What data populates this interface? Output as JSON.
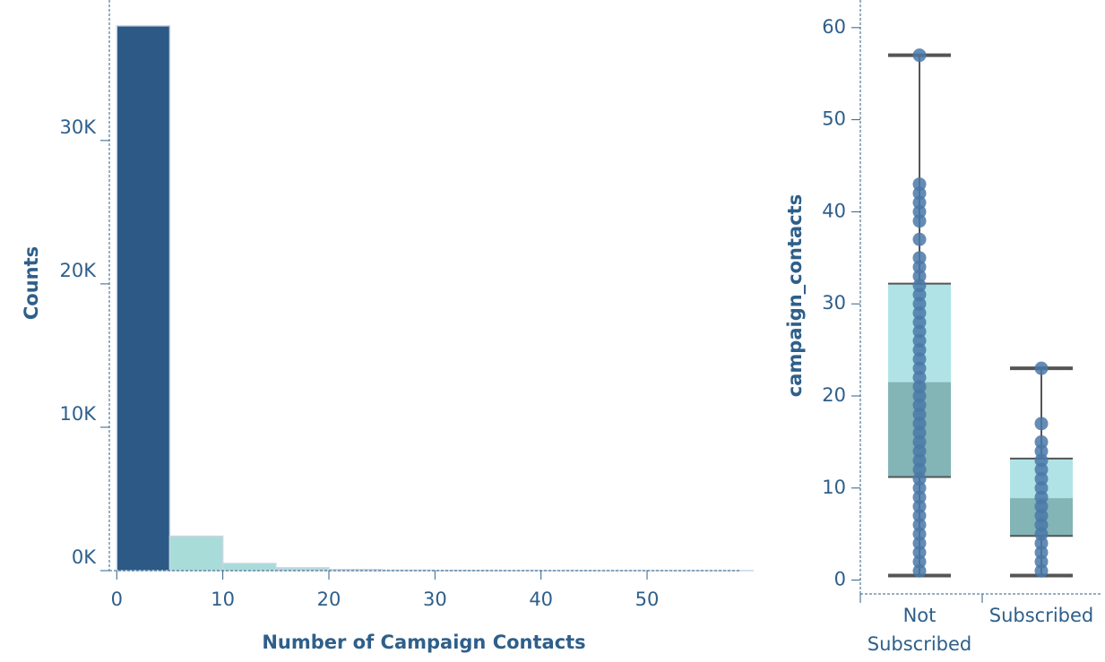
{
  "chart_data": [
    {
      "type": "bar",
      "chart": "histogram",
      "xlabel": "Number of Campaign Contacts",
      "ylabel": "Counts",
      "bins": [
        {
          "start": 0,
          "end": 5,
          "count": 38000,
          "color": "#2c5985"
        },
        {
          "start": 5,
          "end": 10,
          "count": 2400,
          "color": "#a8dcd9"
        },
        {
          "start": 10,
          "end": 15,
          "count": 500,
          "color": "#a8dcd9"
        },
        {
          "start": 15,
          "end": 20,
          "count": 200,
          "color": "#a8dcd9"
        },
        {
          "start": 20,
          "end": 25,
          "count": 80,
          "color": "#a8dcd9"
        },
        {
          "start": 25,
          "end": 30,
          "count": 30,
          "color": "#a8dcd9"
        },
        {
          "start": 30,
          "end": 35,
          "count": 15,
          "color": "#a8dcd9"
        },
        {
          "start": 35,
          "end": 40,
          "count": 8,
          "color": "#a8dcd9"
        },
        {
          "start": 40,
          "end": 45,
          "count": 5,
          "color": "#a8dcd9"
        },
        {
          "start": 45,
          "end": 50,
          "count": 2,
          "color": "#a8dcd9"
        },
        {
          "start": 50,
          "end": 55,
          "count": 1,
          "color": "#a8dcd9"
        },
        {
          "start": 55,
          "end": 60,
          "count": 1,
          "color": "#a8dcd9"
        }
      ],
      "xlim": [
        -0.7,
        58.7
      ],
      "ylim": [
        0,
        39800
      ],
      "xticks": [
        0,
        10,
        20,
        30,
        40,
        50
      ],
      "xtick_labels": [
        "0",
        "10",
        "20",
        "30",
        "40",
        "50"
      ],
      "yticks": [
        0,
        10000,
        20000,
        30000
      ],
      "ytick_labels": [
        "0K",
        "10K",
        "20K",
        "30K"
      ],
      "grid": false,
      "legend": "none"
    },
    {
      "type": "box",
      "xlabel": "",
      "ylabel": "campaign_contacts",
      "categories": [
        "Not Subscribed",
        "Subscribed"
      ],
      "category_lines": [
        [
          "Not",
          "Subscribed"
        ],
        [
          "Subscribed"
        ]
      ],
      "boxes": [
        {
          "whisker_low": 0.5,
          "q1": 11.2,
          "median": 21.5,
          "q3": 32.2,
          "whisker_high": 57.0,
          "points": [
            1,
            2,
            3,
            4,
            5,
            6,
            7,
            8,
            9,
            10,
            11,
            12,
            13,
            14,
            15,
            16,
            17,
            18,
            19,
            20,
            21,
            22,
            23,
            24,
            25,
            26,
            27,
            28,
            29,
            30,
            31,
            32,
            33,
            34,
            35,
            37,
            39,
            40,
            41,
            42,
            43,
            57
          ]
        },
        {
          "whisker_low": 0.5,
          "q1": 4.8,
          "median": 8.9,
          "q3": 13.2,
          "whisker_high": 23.0,
          "points": [
            1,
            2,
            3,
            4,
            5,
            6,
            7,
            8,
            9,
            10,
            11,
            12,
            13,
            14,
            15,
            17,
            23
          ]
        }
      ],
      "ylim": [
        -1.5,
        63
      ],
      "yticks": [
        0,
        10,
        20,
        30,
        40,
        50,
        60
      ],
      "ytick_labels": [
        "0",
        "10",
        "20",
        "30",
        "40",
        "50",
        "60"
      ],
      "colors": {
        "upper_box": "#b0e3e6",
        "lower_box": "#83b4b6",
        "point": "#4a78a8",
        "line": "#555555",
        "axis": "#2e5f8a"
      },
      "grid": false,
      "legend": "none"
    }
  ]
}
